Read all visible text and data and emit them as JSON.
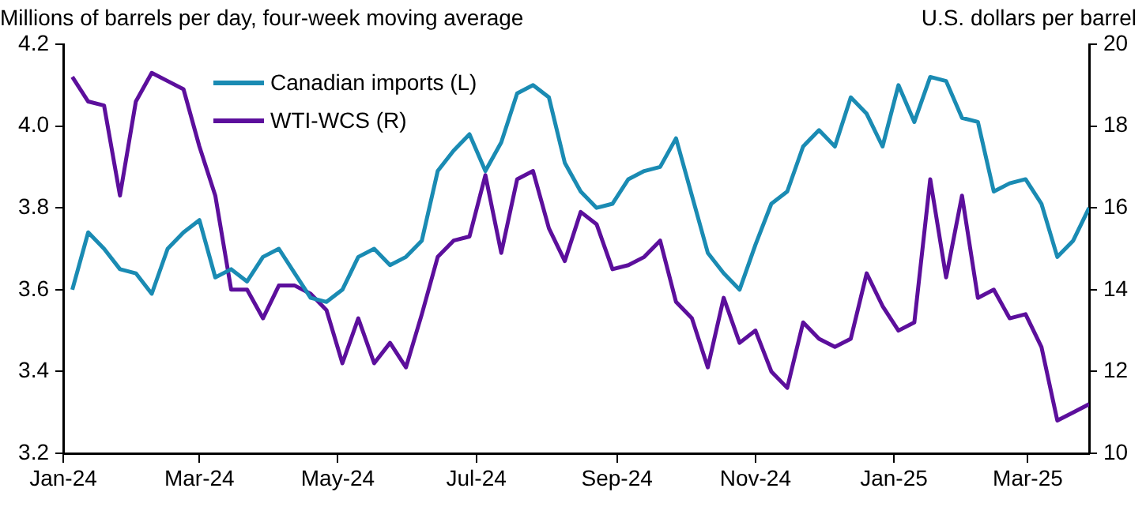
{
  "chart_data": {
    "type": "line",
    "ylabel": "Millions of barrels per day, four-week moving average",
    "y2label": "U.S. dollars per barrel",
    "x": [
      "2024-01-05",
      "2024-01-12",
      "2024-01-19",
      "2024-01-26",
      "2024-02-02",
      "2024-02-09",
      "2024-02-16",
      "2024-02-23",
      "2024-03-01",
      "2024-03-08",
      "2024-03-15",
      "2024-03-22",
      "2024-03-29",
      "2024-04-05",
      "2024-04-12",
      "2024-04-19",
      "2024-04-26",
      "2024-05-03",
      "2024-05-10",
      "2024-05-17",
      "2024-05-24",
      "2024-05-31",
      "2024-06-07",
      "2024-06-14",
      "2024-06-21",
      "2024-06-28",
      "2024-07-05",
      "2024-07-12",
      "2024-07-19",
      "2024-07-26",
      "2024-08-02",
      "2024-08-09",
      "2024-08-16",
      "2024-08-23",
      "2024-08-30",
      "2024-09-06",
      "2024-09-13",
      "2024-09-20",
      "2024-09-27",
      "2024-10-04",
      "2024-10-11",
      "2024-10-18",
      "2024-10-25",
      "2024-11-01",
      "2024-11-08",
      "2024-11-15",
      "2024-11-22",
      "2024-11-29",
      "2024-12-06",
      "2024-12-13",
      "2024-12-20",
      "2024-12-27",
      "2025-01-03",
      "2025-01-10",
      "2025-01-17",
      "2025-01-24",
      "2025-01-31",
      "2025-02-07",
      "2025-02-14",
      "2025-02-21",
      "2025-02-28",
      "2025-03-07",
      "2025-03-14",
      "2025-03-21",
      "2025-03-28"
    ],
    "series": [
      {
        "name": "Canadian imports (L)",
        "color": "#1a8bb3",
        "axis": "y",
        "values": [
          3.6,
          3.74,
          3.7,
          3.65,
          3.64,
          3.59,
          3.7,
          3.74,
          3.77,
          3.63,
          3.65,
          3.62,
          3.68,
          3.7,
          3.64,
          3.58,
          3.57,
          3.6,
          3.68,
          3.7,
          3.66,
          3.68,
          3.72,
          3.89,
          3.94,
          3.98,
          3.89,
          3.96,
          4.08,
          4.1,
          4.07,
          3.91,
          3.84,
          3.8,
          3.81,
          3.87,
          3.89,
          3.9,
          3.97,
          3.83,
          3.69,
          3.64,
          3.6,
          3.71,
          3.81,
          3.84,
          3.95,
          3.99,
          3.95,
          4.07,
          4.03,
          3.95,
          4.1,
          4.01,
          4.12,
          4.11,
          4.02,
          4.01,
          3.84,
          3.86,
          3.87,
          3.81,
          3.68,
          3.72,
          3.8
        ]
      },
      {
        "name": "WTI-WCS (R)",
        "color": "#5c0f9c",
        "axis": "y2",
        "values": [
          19.2,
          18.6,
          18.5,
          16.3,
          18.6,
          19.3,
          19.1,
          18.9,
          17.5,
          16.3,
          14.0,
          14.0,
          13.3,
          14.1,
          14.1,
          13.9,
          13.5,
          12.2,
          13.3,
          12.2,
          12.7,
          12.1,
          13.4,
          14.8,
          15.2,
          15.3,
          16.8,
          14.9,
          16.7,
          16.9,
          15.5,
          14.7,
          15.9,
          15.6,
          14.5,
          14.6,
          14.8,
          15.2,
          13.7,
          13.3,
          12.1,
          13.8,
          12.7,
          13.0,
          12.0,
          11.6,
          13.2,
          12.8,
          12.6,
          12.8,
          14.4,
          13.6,
          13.0,
          13.2,
          16.7,
          14.3,
          16.3,
          13.8,
          14.0,
          13.3,
          13.4,
          12.6,
          10.8,
          11.0,
          11.2
        ]
      }
    ],
    "xlim": [
      "2024-01-01",
      "2025-03-28"
    ],
    "xticks": [
      {
        "value": "2024-01-01",
        "label": "Jan-24"
      },
      {
        "value": "2024-03-01",
        "label": "Mar-24"
      },
      {
        "value": "2024-05-01",
        "label": "May-24"
      },
      {
        "value": "2024-07-01",
        "label": "Jul-24"
      },
      {
        "value": "2024-09-01",
        "label": "Sep-24"
      },
      {
        "value": "2024-11-01",
        "label": "Nov-24"
      },
      {
        "value": "2025-01-01",
        "label": "Jan-25"
      },
      {
        "value": "2025-03-01",
        "label": "Mar-25"
      }
    ],
    "ylim": [
      3.2,
      4.2
    ],
    "yticks": [
      {
        "value": 3.2,
        "label": "3.2"
      },
      {
        "value": 3.4,
        "label": "3.4"
      },
      {
        "value": 3.6,
        "label": "3.6"
      },
      {
        "value": 3.8,
        "label": "3.8"
      },
      {
        "value": 4.0,
        "label": "4.0"
      },
      {
        "value": 4.2,
        "label": "4.2"
      }
    ],
    "y2lim": [
      10,
      20
    ],
    "y2ticks": [
      10,
      12,
      14,
      16,
      18,
      20
    ],
    "grid": false,
    "legend": "top left",
    "marker": "none",
    "line_style": "solid"
  }
}
